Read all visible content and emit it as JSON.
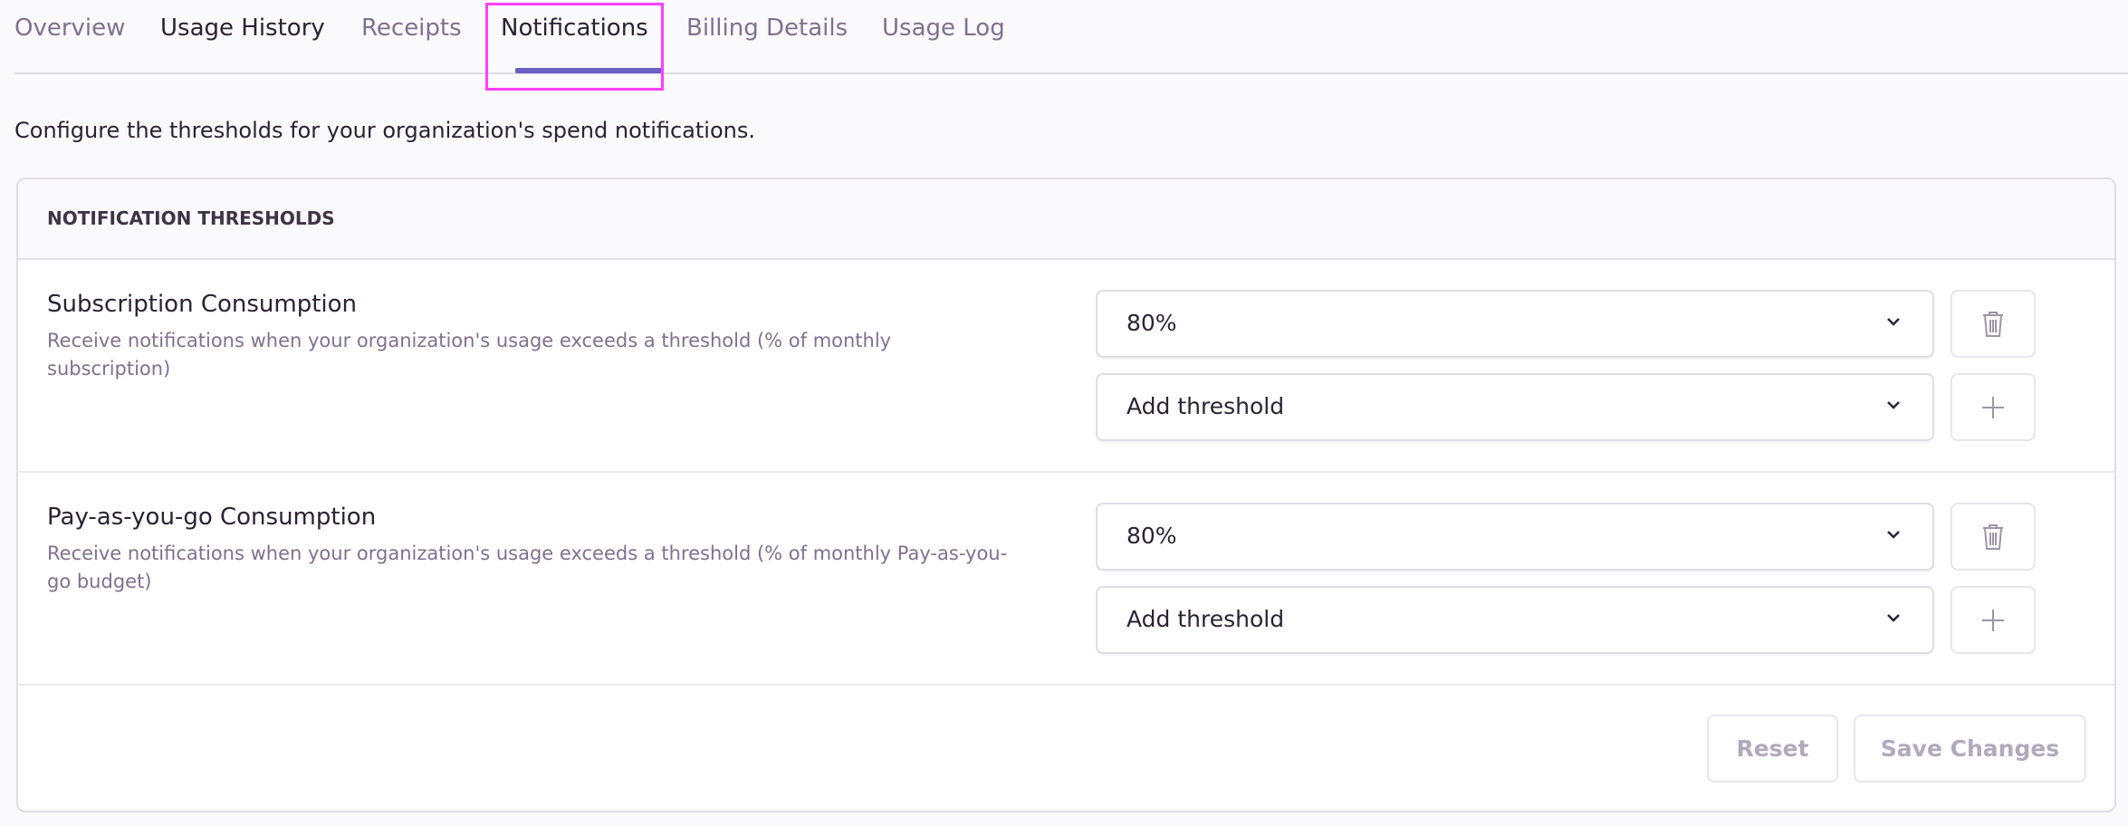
{
  "tabs": [
    {
      "label": "Overview"
    },
    {
      "label": "Usage History"
    },
    {
      "label": "Receipts"
    },
    {
      "label": "Notifications",
      "active": true
    },
    {
      "label": "Billing Details"
    },
    {
      "label": "Usage Log"
    }
  ],
  "description": "Configure the thresholds for your organization's spend notifications.",
  "card": {
    "header": "NOTIFICATION THRESHOLDS",
    "rows": [
      {
        "title": "Subscription Consumption",
        "description": "Receive notifications when your organization's usage exceeds a threshold (% of monthly subscription)",
        "selected": "80%",
        "add_placeholder": "Add threshold"
      },
      {
        "title": "Pay-as-you-go Consumption",
        "description": "Receive notifications when your organization's usage exceeds a threshold (% of monthly Pay-as-you-go budget)",
        "selected": "80%",
        "add_placeholder": "Add threshold"
      }
    ],
    "reset_label": "Reset",
    "save_label": "Save Changes"
  },
  "colors": {
    "accent": "#6c5fc7",
    "highlight": "#ff40ff",
    "muted": "#80708f"
  },
  "icons": [
    "chevron-down-icon",
    "trash-icon",
    "plus-icon"
  ]
}
